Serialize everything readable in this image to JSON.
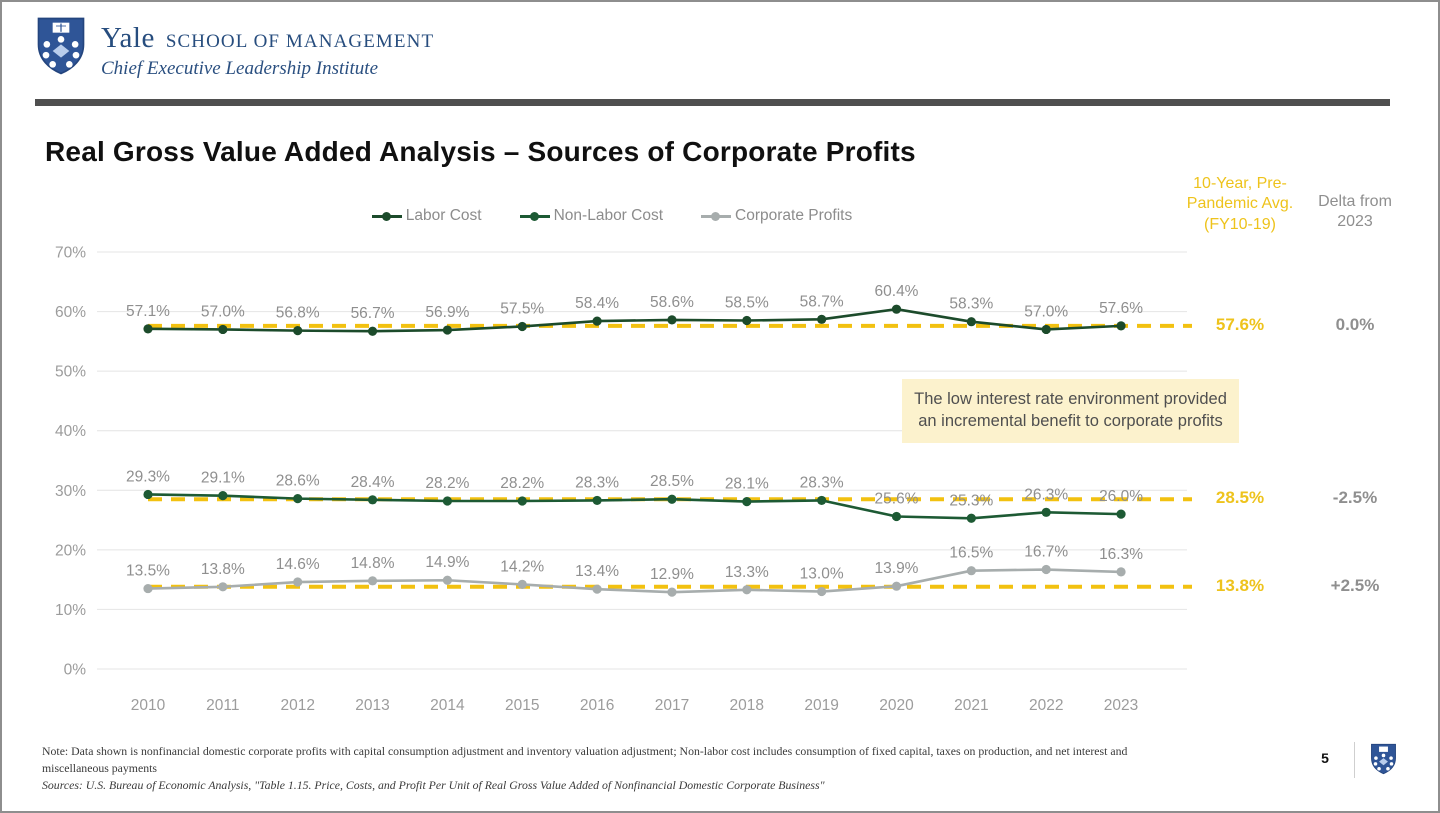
{
  "header": {
    "wordmark": "Yale",
    "school": "SCHOOL OF MANAGEMENT",
    "institute": "Chief Executive Leadership Institute"
  },
  "title": "Real Gross Value Added Analysis – Sources of Corporate Profits",
  "columns": {
    "avg_header": "10-Year, Pre-Pandemic Avg. (FY10-19)",
    "delta_header": "Delta from 2023"
  },
  "annotation": "The low interest rate environment provided an incremental benefit to corporate profits",
  "colors": {
    "yale_blue_text": "#274d7e",
    "shield_blue": "#2f5597",
    "accent_yellow": "#eec31c",
    "pale_yellow_bg": "#fcf2cd",
    "divider_gray": "#4f4f4f",
    "label_gray": "#8f8f8f"
  },
  "chart_data": {
    "type": "line",
    "x": [
      "2010",
      "2011",
      "2012",
      "2013",
      "2014",
      "2015",
      "2016",
      "2017",
      "2018",
      "2019",
      "2020",
      "2021",
      "2022",
      "2023"
    ],
    "ylim": [
      0,
      70
    ],
    "yticks": [
      "0%",
      "10%",
      "20%",
      "30%",
      "40%",
      "50%",
      "60%",
      "70%"
    ],
    "grid": true,
    "legend_position": "top",
    "avg_line_color": "#f2c110",
    "avg_line_style": "dashed",
    "series": [
      {
        "name": "Labor Cost",
        "color": "#1c4b2b",
        "values": [
          57.1,
          57.0,
          56.8,
          56.7,
          56.9,
          57.5,
          58.4,
          58.6,
          58.5,
          58.7,
          60.4,
          58.3,
          57.0,
          57.6
        ],
        "avg": 57.6,
        "avg_label": "57.6%",
        "delta_label": "0.0%"
      },
      {
        "name": "Non-Labor Cost",
        "color": "#1d5a34",
        "values": [
          29.3,
          29.1,
          28.6,
          28.4,
          28.2,
          28.2,
          28.3,
          28.5,
          28.1,
          28.3,
          25.6,
          25.3,
          26.3,
          26.0
        ],
        "avg": 28.5,
        "avg_label": "28.5%",
        "delta_label": "-2.5%"
      },
      {
        "name": "Corporate Profits",
        "color": "#a7adad",
        "values": [
          13.5,
          13.8,
          14.6,
          14.8,
          14.9,
          14.2,
          13.4,
          12.9,
          13.3,
          13.0,
          13.9,
          16.5,
          16.7,
          16.3
        ],
        "avg": 13.8,
        "avg_label": "13.8%",
        "delta_label": "+2.5%"
      }
    ]
  },
  "footer": {
    "note": "Note: Data shown is nonfinancial domestic corporate profits with capital consumption adjustment and inventory valuation adjustment; Non-labor cost includes consumption of fixed capital, taxes on production, and net interest and miscellaneous payments",
    "sources": "Sources: U.S. Bureau of Economic Analysis, \"Table 1.15. Price, Costs, and Profit Per Unit of Real Gross Value Added of Nonfinancial Domestic Corporate Business\"",
    "page": "5"
  }
}
